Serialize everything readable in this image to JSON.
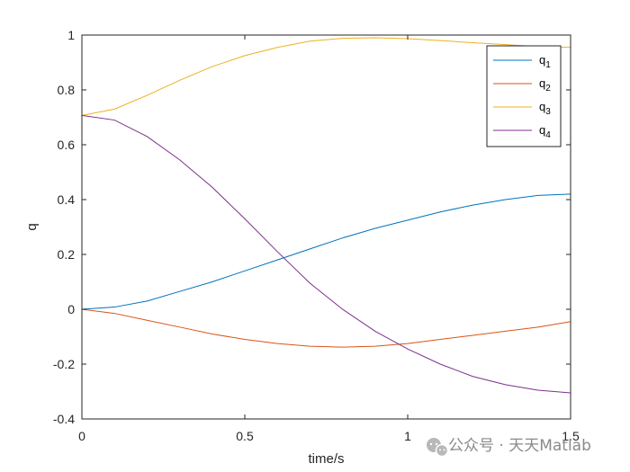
{
  "chart_data": {
    "type": "line",
    "xlabel": "time/s",
    "ylabel": "q",
    "xlim": [
      0,
      1.5
    ],
    "ylim": [
      -0.4,
      1
    ],
    "xticks": [
      "0",
      "0.5",
      "1",
      "1.5"
    ],
    "yticks": [
      "-0.4",
      "-0.2",
      "0",
      "0.2",
      "0.4",
      "0.6",
      "0.8",
      "1"
    ],
    "grid": false,
    "legend_position": "top-right",
    "series": [
      {
        "name": "q",
        "subscript": "1",
        "color": "#0072BD",
        "x": [
          0,
          0.1,
          0.2,
          0.3,
          0.4,
          0.5,
          0.6,
          0.7,
          0.8,
          0.9,
          1.0,
          1.1,
          1.2,
          1.3,
          1.4,
          1.5
        ],
        "y": [
          0,
          0.008,
          0.03,
          0.065,
          0.1,
          0.14,
          0.18,
          0.22,
          0.26,
          0.295,
          0.325,
          0.355,
          0.38,
          0.4,
          0.415,
          0.42
        ]
      },
      {
        "name": "q",
        "subscript": "2",
        "color": "#D95319",
        "x": [
          0,
          0.1,
          0.2,
          0.3,
          0.4,
          0.5,
          0.6,
          0.7,
          0.8,
          0.9,
          1.0,
          1.1,
          1.2,
          1.3,
          1.4,
          1.5
        ],
        "y": [
          0,
          -0.015,
          -0.04,
          -0.065,
          -0.09,
          -0.11,
          -0.125,
          -0.135,
          -0.138,
          -0.135,
          -0.125,
          -0.11,
          -0.095,
          -0.08,
          -0.065,
          -0.045
        ]
      },
      {
        "name": "q",
        "subscript": "3",
        "color": "#EDB120",
        "x": [
          0,
          0.1,
          0.2,
          0.3,
          0.4,
          0.5,
          0.6,
          0.7,
          0.8,
          0.9,
          1.0,
          1.1,
          1.2,
          1.3,
          1.4,
          1.5
        ],
        "y": [
          0.707,
          0.73,
          0.78,
          0.835,
          0.885,
          0.925,
          0.955,
          0.978,
          0.988,
          0.99,
          0.987,
          0.98,
          0.972,
          0.965,
          0.958,
          0.955
        ]
      },
      {
        "name": "q",
        "subscript": "4",
        "color": "#7E2F8E",
        "x": [
          0,
          0.1,
          0.2,
          0.3,
          0.4,
          0.5,
          0.6,
          0.7,
          0.8,
          0.9,
          1.0,
          1.1,
          1.2,
          1.3,
          1.4,
          1.5
        ],
        "y": [
          0.707,
          0.69,
          0.63,
          0.545,
          0.445,
          0.33,
          0.21,
          0.095,
          0.0,
          -0.08,
          -0.145,
          -0.2,
          -0.245,
          -0.275,
          -0.295,
          -0.305
        ]
      }
    ]
  },
  "watermark": {
    "text": "公众号 · 天天Matlab",
    "icon": "wechat-icon"
  }
}
